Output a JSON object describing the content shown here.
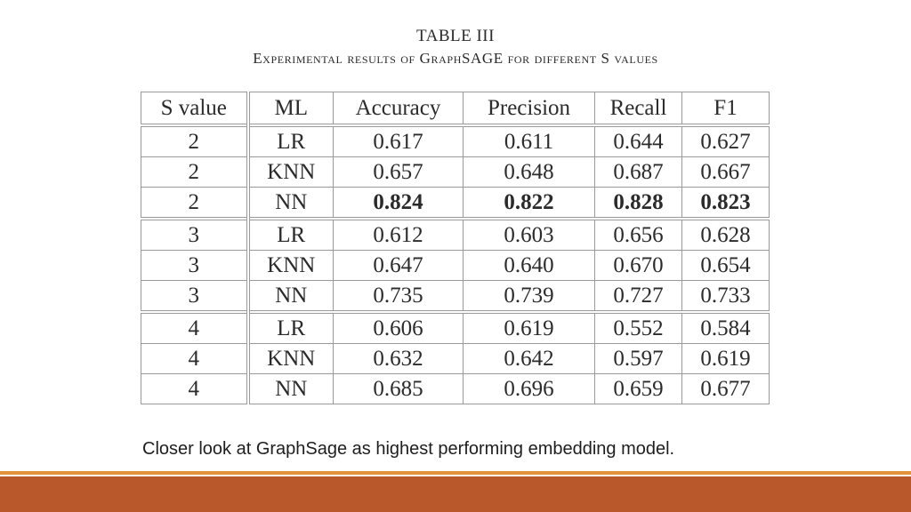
{
  "caption": {
    "title": "TABLE III",
    "subtitle": "Experimental results of GraphSAGE for different S values"
  },
  "table": {
    "headers": [
      "S value",
      "ML",
      "Accuracy",
      "Precision",
      "Recall",
      "F1"
    ],
    "rows": [
      {
        "s": "2",
        "ml": "LR",
        "accuracy": "0.617",
        "precision": "0.611",
        "recall": "0.644",
        "f1": "0.627"
      },
      {
        "s": "2",
        "ml": "KNN",
        "accuracy": "0.657",
        "precision": "0.648",
        "recall": "0.687",
        "f1": "0.667"
      },
      {
        "s": "2",
        "ml": "NN",
        "accuracy": "0.824",
        "precision": "0.822",
        "recall": "0.828",
        "f1": "0.823"
      },
      {
        "s": "3",
        "ml": "LR",
        "accuracy": "0.612",
        "precision": "0.603",
        "recall": "0.656",
        "f1": "0.628"
      },
      {
        "s": "3",
        "ml": "KNN",
        "accuracy": "0.647",
        "precision": "0.640",
        "recall": "0.670",
        "f1": "0.654"
      },
      {
        "s": "3",
        "ml": "NN",
        "accuracy": "0.735",
        "precision": "0.739",
        "recall": "0.727",
        "f1": "0.733"
      },
      {
        "s": "4",
        "ml": "LR",
        "accuracy": "0.606",
        "precision": "0.619",
        "recall": "0.552",
        "f1": "0.584"
      },
      {
        "s": "4",
        "ml": "KNN",
        "accuracy": "0.632",
        "precision": "0.642",
        "recall": "0.597",
        "f1": "0.619"
      },
      {
        "s": "4",
        "ml": "NN",
        "accuracy": "0.685",
        "precision": "0.696",
        "recall": "0.659",
        "f1": "0.677"
      }
    ]
  },
  "slide_caption": "Closer look at GraphSage as highest performing embedding model.",
  "colors": {
    "accent_thin_bar": "#e3913a",
    "accent_thick_bar": "#b8582b"
  }
}
